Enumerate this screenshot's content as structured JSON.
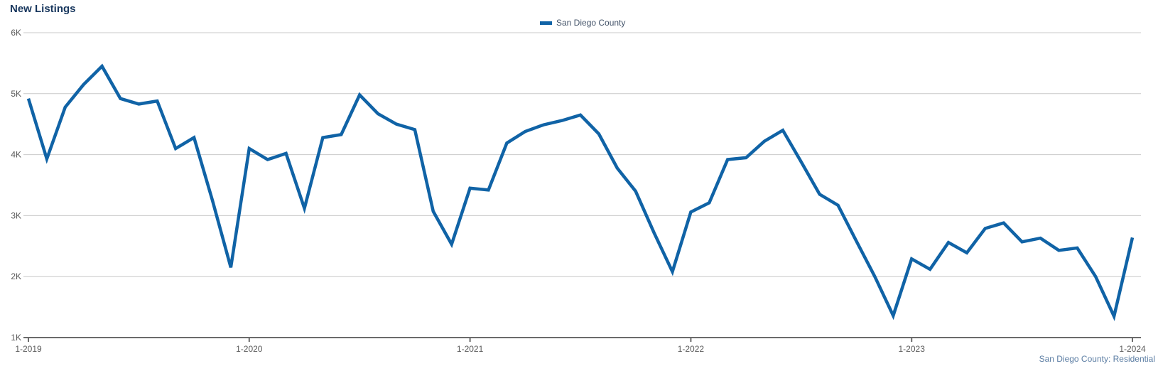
{
  "header": {
    "title": "New Listings"
  },
  "legend": {
    "items": [
      {
        "label": "San Diego County",
        "color": "#1063A6"
      }
    ]
  },
  "footer": {
    "subtitle": "San Diego County: Residential"
  },
  "colors": {
    "series_line": "#1063A6",
    "title_text": "#17365D",
    "axis_label_text": "#595959",
    "legend_text": "#44546A",
    "subtitle_text": "#5B7DA3",
    "gridline": "#C9C9C9",
    "axis_line": "#6B6B6B"
  },
  "chart_data": {
    "type": "line",
    "title": "New Listings",
    "x_start": "2019-01",
    "x_interval": "month",
    "series": [
      {
        "name": "San Diego County",
        "color": "#1063A6",
        "values": [
          4920,
          3930,
          4780,
          5150,
          5450,
          4920,
          4830,
          4880,
          4100,
          4280,
          3250,
          2150,
          4100,
          3920,
          4020,
          3120,
          4280,
          4330,
          4980,
          4670,
          4500,
          4410,
          3070,
          2530,
          3450,
          3420,
          4190,
          4380,
          4490,
          4560,
          4650,
          4340,
          3780,
          3400,
          2720,
          2080,
          3060,
          3210,
          3920,
          3950,
          4220,
          4400,
          3880,
          3350,
          3170,
          2580,
          2000,
          1360,
          2290,
          2120,
          2560,
          2390,
          2790,
          2880,
          2570,
          2630,
          2430,
          2470,
          2000,
          1350,
          2640
        ]
      }
    ],
    "x_tick_labels": [
      "1-2019",
      "1-2020",
      "1-2021",
      "1-2022",
      "1-2023",
      "1-2024"
    ],
    "x_tick_month_indices": [
      0,
      12,
      24,
      36,
      48,
      60
    ],
    "y_tick_labels": [
      "6K",
      "5K",
      "4K",
      "3K",
      "2K",
      "1K"
    ],
    "y_tick_values": [
      6000,
      5000,
      4000,
      3000,
      2000,
      1000
    ],
    "ylim": [
      1000,
      6000
    ],
    "grid": "horizontal",
    "legend_position": "top-center"
  }
}
